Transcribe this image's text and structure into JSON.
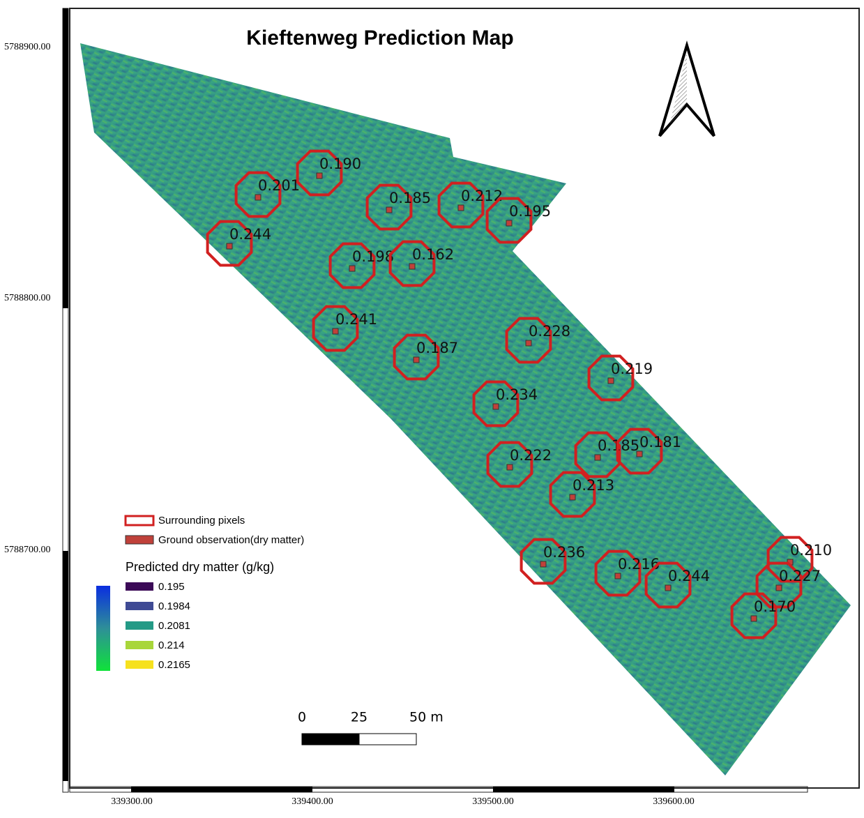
{
  "title": "Kieftenweg Prediction Map",
  "y_axis_labels": [
    "5788900.00",
    "5788800.00",
    "5788700.00"
  ],
  "x_axis_labels": [
    "339300.00",
    "339400.00",
    "339500.00",
    "339600.00"
  ],
  "observations": [
    "0.190",
    "0.201",
    "0.244",
    "0.185",
    "0.212",
    "0.195",
    "0.198",
    "0.162",
    "0.241",
    "0.187",
    "0.228",
    "0.219",
    "0.234",
    "0.222",
    "0.185",
    "0.181",
    "0.213",
    "0.236",
    "0.216",
    "0.244",
    "0.210",
    "0.227",
    "0.170"
  ],
  "legend": {
    "surrounding": "Surrounding pixels",
    "ground": "Ground observation(dry matter)",
    "heading": "Predicted dry matter (g/kg)",
    "classes": [
      {
        "label": "0.195",
        "color": "#3b0a57"
      },
      {
        "label": "0.1984",
        "color": "#3f4a94"
      },
      {
        "label": "0.2081",
        "color": "#239a86"
      },
      {
        "label": "0.214",
        "color": "#a8d63a"
      },
      {
        "label": "0.2165",
        "color": "#f6e11e"
      }
    ]
  },
  "scale_bar": [
    "0",
    "25",
    "50 m"
  ]
}
